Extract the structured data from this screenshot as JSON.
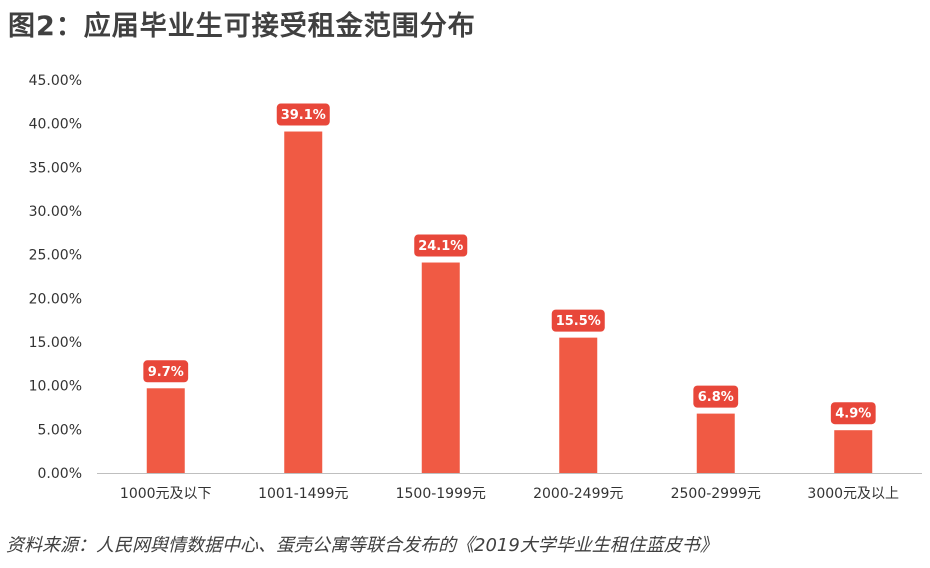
{
  "title": "图2：应届毕业生可接受租金范围分布",
  "source": "资料来源：人民网舆情数据中心、蛋壳公寓等联合发布的《2019大学毕业生租住蓝皮书》",
  "colors": {
    "bar": "#F05A44",
    "label_bg": "#E8473A",
    "axis": "#bfbfbf",
    "text": "#333333"
  },
  "chart_data": {
    "type": "bar",
    "title": "",
    "xlabel": "",
    "ylabel": "",
    "categories": [
      "1000元及以下",
      "1001-1499元",
      "1500-1999元",
      "2000-2499元",
      "2500-2999元",
      "3000元及以上"
    ],
    "values": [
      9.7,
      39.1,
      24.1,
      15.5,
      6.8,
      4.9
    ],
    "data_labels": [
      "9.7%",
      "39.1%",
      "24.1%",
      "15.5%",
      "6.8%",
      "4.9%"
    ],
    "ylim": [
      0,
      45
    ],
    "yticks": [
      0,
      5,
      10,
      15,
      20,
      25,
      30,
      35,
      40,
      45
    ],
    "ytick_labels": [
      "0.00%",
      "5.00%",
      "10.00%",
      "15.00%",
      "20.00%",
      "25.00%",
      "30.00%",
      "35.00%",
      "40.00%",
      "45.00%"
    ],
    "grid": false,
    "legend": "none"
  }
}
